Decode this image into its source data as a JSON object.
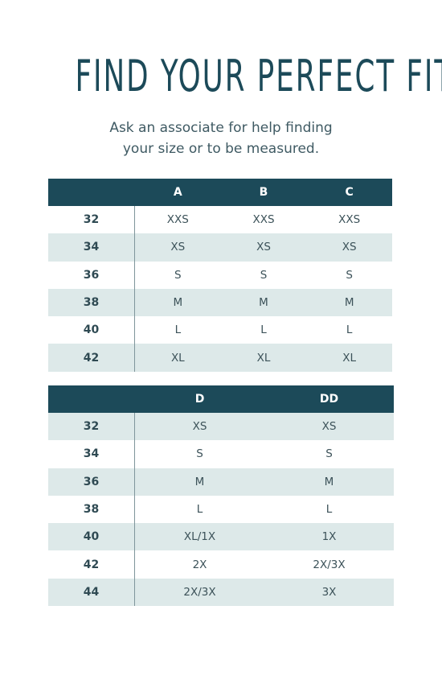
{
  "title": "FIND YOUR PERFECT FIT",
  "subtitle": {
    "line1": "Ask an associate for help finding",
    "line2": "your size or to be measured."
  },
  "table1": {
    "headers": [
      "A",
      "B",
      "C"
    ],
    "rows": [
      {
        "band": "32",
        "sizes": [
          "XXS",
          "XXS",
          "XXS"
        ]
      },
      {
        "band": "34",
        "sizes": [
          "XS",
          "XS",
          "XS"
        ]
      },
      {
        "band": "36",
        "sizes": [
          "S",
          "S",
          "S"
        ]
      },
      {
        "band": "38",
        "sizes": [
          "M",
          "M",
          "M"
        ]
      },
      {
        "band": "40",
        "sizes": [
          "L",
          "L",
          "L"
        ]
      },
      {
        "band": "42",
        "sizes": [
          "XL",
          "XL",
          "XL"
        ]
      }
    ]
  },
  "table2": {
    "headers": [
      "D",
      "DD"
    ],
    "rows": [
      {
        "band": "32",
        "sizes": [
          "XS",
          "XS"
        ]
      },
      {
        "band": "34",
        "sizes": [
          "S",
          "S"
        ]
      },
      {
        "band": "36",
        "sizes": [
          "M",
          "M"
        ]
      },
      {
        "band": "38",
        "sizes": [
          "L",
          "L"
        ]
      },
      {
        "band": "40",
        "sizes": [
          "XL/1X",
          "1X"
        ]
      },
      {
        "band": "42",
        "sizes": [
          "2X",
          "2X/3X"
        ]
      },
      {
        "band": "44",
        "sizes": [
          "2X/3X",
          "3X"
        ]
      }
    ]
  },
  "colors": {
    "header_bg": "#1c4a59",
    "row_shade": "#dde9e9",
    "title": "#1c4a59"
  }
}
